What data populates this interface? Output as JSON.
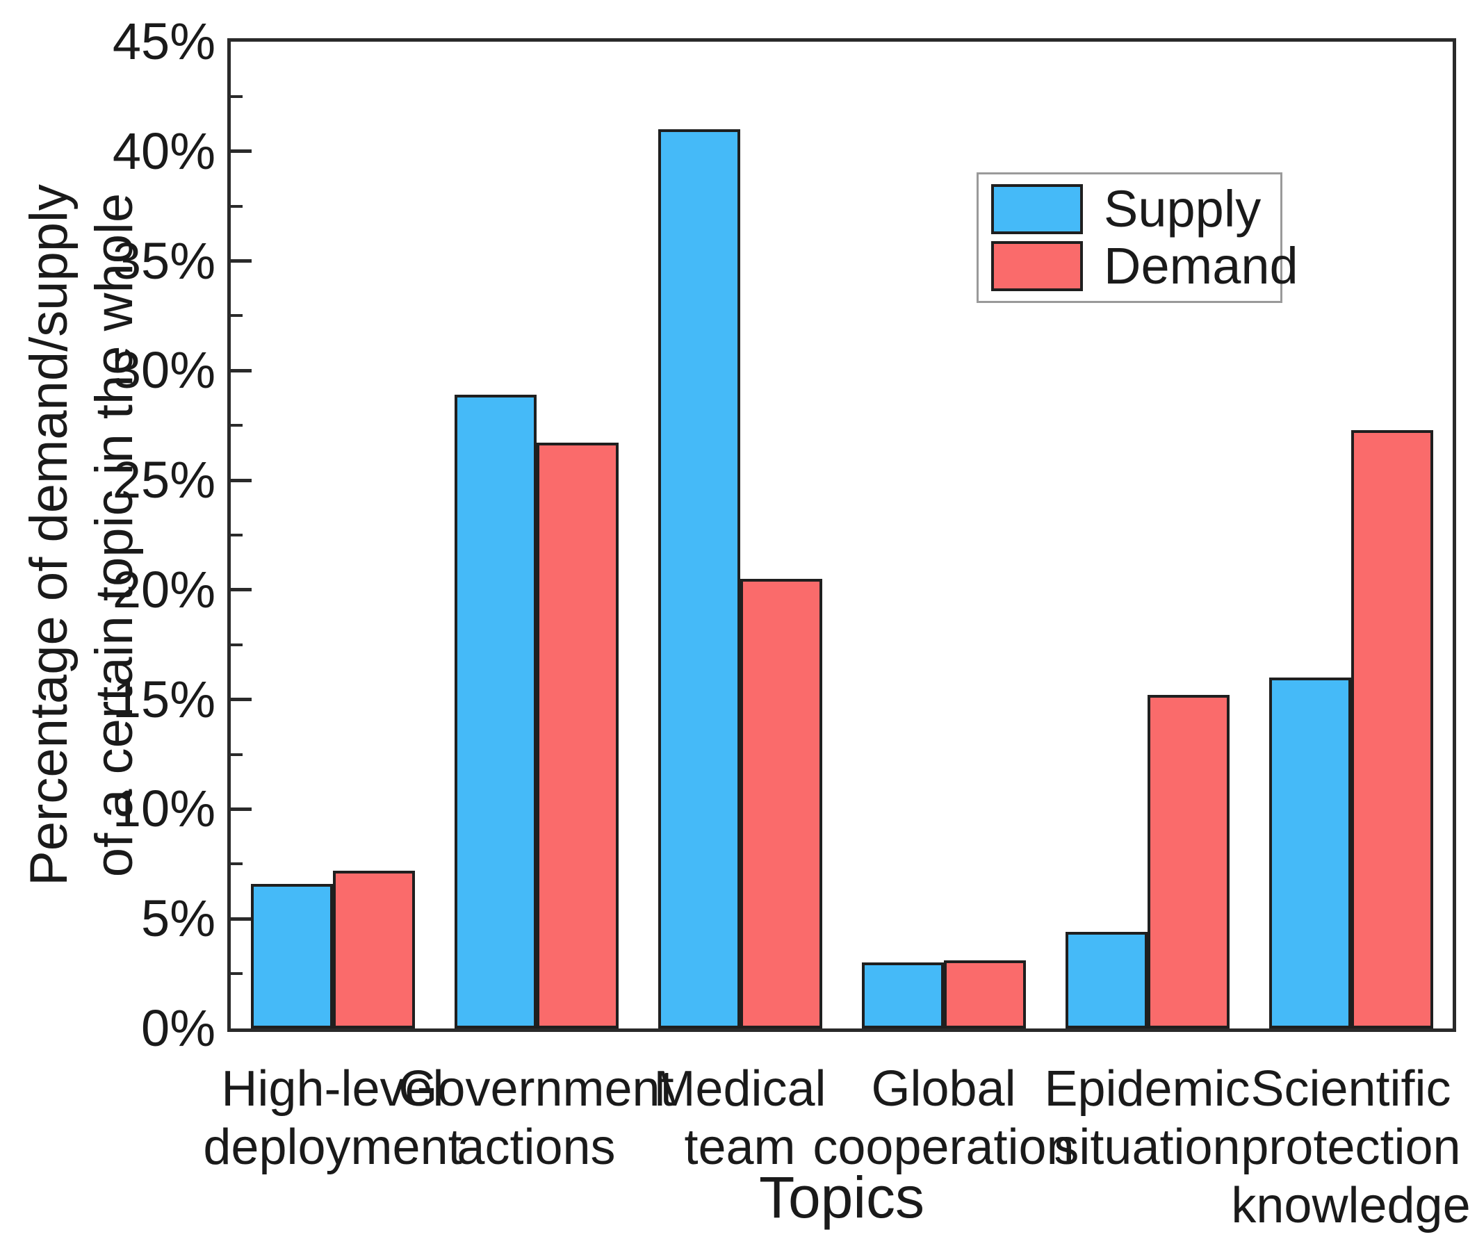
{
  "figure": {
    "y_axis_label_lines": [
      "Percentage of demand/supply",
      "of a certain topic in the whole"
    ],
    "x_axis_label": "Topics",
    "y_tick_labels": [
      "0%",
      "5%",
      "10%",
      "15%",
      "20%",
      "25%",
      "30%",
      "35%",
      "40%",
      "45%"
    ],
    "frame_color": "#2a2a2a",
    "bar_border_color": "#1f1f1f",
    "legend_border_color": "#9a9a9a"
  },
  "chart_data": {
    "type": "bar",
    "title": "",
    "categories": [
      "High-level deployment",
      "Government actions",
      "Medical team",
      "Global cooperation",
      "Epidemic situation",
      "Scientific protection knowledge"
    ],
    "category_label_lines": [
      [
        "High-level",
        "deployment"
      ],
      [
        "Government",
        "actions"
      ],
      [
        "Medical",
        "team"
      ],
      [
        "Global",
        "cooperation"
      ],
      [
        "Epidemic",
        "situation"
      ],
      [
        "Scientific",
        "protection",
        "knowledge"
      ]
    ],
    "series": [
      {
        "name": "Supply",
        "color": "#45BAF8",
        "values": [
          6.6,
          28.9,
          41.0,
          3.0,
          4.4,
          16.0
        ]
      },
      {
        "name": "Demand",
        "color": "#FA6B6B",
        "values": [
          7.2,
          26.7,
          20.5,
          3.1,
          15.2,
          27.3
        ]
      }
    ],
    "xlabel": "Topics",
    "ylabel": "Percentage of demand/supply of a certain topic in the whole",
    "ylim": [
      0,
      45
    ],
    "y_major_step": 5,
    "y_minor_step": 2.5,
    "y_tick_format": "percent",
    "grid": false,
    "legend_position": "upper-right-inside",
    "bar_group_layout": "paired-touching"
  }
}
